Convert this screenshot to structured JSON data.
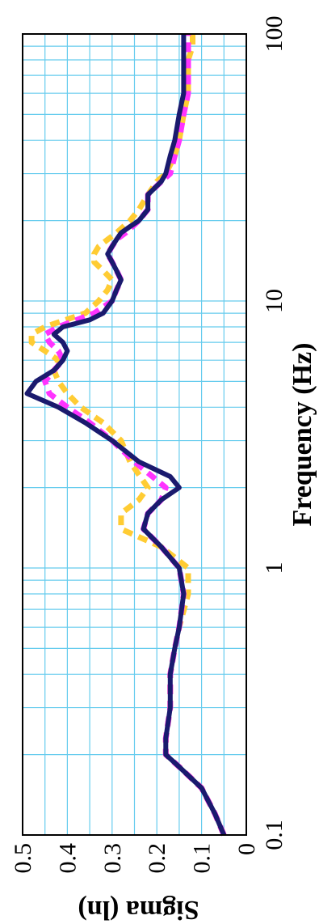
{
  "chart_data": {
    "type": "line",
    "title": "",
    "xlabel": "Frequency (Hz)",
    "ylabel": "Sigma (ln)",
    "x_scale": "log",
    "xlim": [
      0.1,
      100
    ],
    "ylim": [
      0,
      0.5
    ],
    "grid": true,
    "x_ticks": [
      {
        "value": 0.1,
        "label": "0.1"
      },
      {
        "value": 1,
        "label": "1"
      },
      {
        "value": 10,
        "label": "10"
      },
      {
        "value": 100,
        "label": "100"
      }
    ],
    "y_ticks": [
      {
        "value": 0,
        "label": "0"
      },
      {
        "value": 0.1,
        "label": "0.1"
      },
      {
        "value": 0.2,
        "label": "0.2"
      },
      {
        "value": 0.3,
        "label": "0.3"
      },
      {
        "value": 0.4,
        "label": "0.4"
      },
      {
        "value": 0.5,
        "label": "0.5"
      }
    ],
    "series": [
      {
        "color": "#1a1a6e",
        "style": "solid",
        "x": [
          0.1,
          0.12,
          0.15,
          0.18,
          0.2,
          0.23,
          0.3,
          0.4,
          0.5,
          0.6,
          0.8,
          1.0,
          1.2,
          1.4,
          1.6,
          1.8,
          2.0,
          2.2,
          2.5,
          3.0,
          3.5,
          4.0,
          4.5,
          5.0,
          5.5,
          6.0,
          6.5,
          7.0,
          7.5,
          8.0,
          8.5,
          9.0,
          10.0,
          11.0,
          12.0,
          13.0,
          14.0,
          15.0,
          16.0,
          17.0,
          18.0,
          19.0,
          20.0,
          22.0,
          25.0,
          28.0,
          30.0,
          35.0,
          40.0,
          50.0,
          60.0,
          70.0,
          80.0,
          90.0,
          100.0
        ],
        "y": [
          0.05,
          0.07,
          0.1,
          0.15,
          0.18,
          0.18,
          0.17,
          0.17,
          0.16,
          0.15,
          0.14,
          0.15,
          0.19,
          0.23,
          0.22,
          0.19,
          0.15,
          0.17,
          0.24,
          0.3,
          0.36,
          0.42,
          0.49,
          0.47,
          0.43,
          0.41,
          0.4,
          0.41,
          0.43,
          0.41,
          0.35,
          0.32,
          0.3,
          0.29,
          0.28,
          0.29,
          0.3,
          0.31,
          0.3,
          0.29,
          0.28,
          0.26,
          0.24,
          0.22,
          0.22,
          0.19,
          0.18,
          0.17,
          0.16,
          0.15,
          0.14,
          0.14,
          0.14,
          0.14,
          0.14
        ]
      },
      {
        "color": "#ff33ff",
        "style": "dashed",
        "x": [
          0.1,
          0.12,
          0.15,
          0.18,
          0.2,
          0.23,
          0.3,
          0.4,
          0.5,
          0.6,
          0.8,
          1.0,
          1.2,
          1.4,
          1.6,
          1.8,
          2.0,
          2.5,
          3.0,
          3.5,
          4.0,
          4.5,
          5.0,
          5.5,
          6.0,
          6.5,
          7.0,
          7.5,
          8.0,
          9.0,
          10.0,
          11.0,
          12.0,
          13.0,
          14.0,
          15.0,
          16.0,
          17.0,
          18.0,
          20.0,
          22.0,
          25.0,
          28.0,
          30.0,
          35.0,
          40.0,
          50.0,
          60.0,
          70.0,
          80.0,
          90.0,
          100.0
        ],
        "y": [
          0.05,
          0.07,
          0.1,
          0.15,
          0.18,
          0.18,
          0.17,
          0.17,
          0.16,
          0.15,
          0.14,
          0.15,
          0.19,
          0.23,
          0.22,
          0.19,
          0.18,
          0.25,
          0.3,
          0.35,
          0.4,
          0.44,
          0.45,
          0.43,
          0.41,
          0.42,
          0.44,
          0.45,
          0.42,
          0.34,
          0.3,
          0.29,
          0.28,
          0.29,
          0.3,
          0.31,
          0.3,
          0.29,
          0.27,
          0.24,
          0.22,
          0.22,
          0.19,
          0.17,
          0.16,
          0.15,
          0.14,
          0.13,
          0.13,
          0.13,
          0.13,
          0.13
        ]
      },
      {
        "color": "#ffcc33",
        "style": "dashed",
        "x": [
          0.1,
          0.12,
          0.15,
          0.18,
          0.2,
          0.23,
          0.3,
          0.4,
          0.5,
          0.6,
          0.8,
          1.0,
          1.2,
          1.4,
          1.6,
          1.8,
          2.0,
          2.5,
          3.0,
          3.5,
          4.0,
          4.5,
          5.0,
          5.5,
          6.0,
          6.5,
          7.0,
          7.5,
          8.0,
          9.0,
          10.0,
          11.0,
          12.0,
          13.0,
          14.0,
          15.0,
          16.0,
          17.0,
          18.0,
          20.0,
          22.0,
          25.0,
          28.0,
          30.0,
          35.0,
          40.0,
          50.0,
          60.0,
          70.0,
          80.0,
          90.0,
          100.0
        ],
        "y": [
          0.05,
          0.07,
          0.1,
          0.15,
          0.18,
          0.18,
          0.17,
          0.17,
          0.16,
          0.15,
          0.13,
          0.13,
          0.19,
          0.28,
          0.28,
          0.24,
          0.22,
          0.26,
          0.28,
          0.32,
          0.37,
          0.4,
          0.42,
          0.43,
          0.42,
          0.45,
          0.48,
          0.48,
          0.45,
          0.36,
          0.33,
          0.31,
          0.3,
          0.32,
          0.34,
          0.34,
          0.33,
          0.31,
          0.29,
          0.26,
          0.24,
          0.22,
          0.2,
          0.18,
          0.16,
          0.15,
          0.14,
          0.13,
          0.13,
          0.13,
          0.12,
          0.12
        ]
      }
    ]
  }
}
